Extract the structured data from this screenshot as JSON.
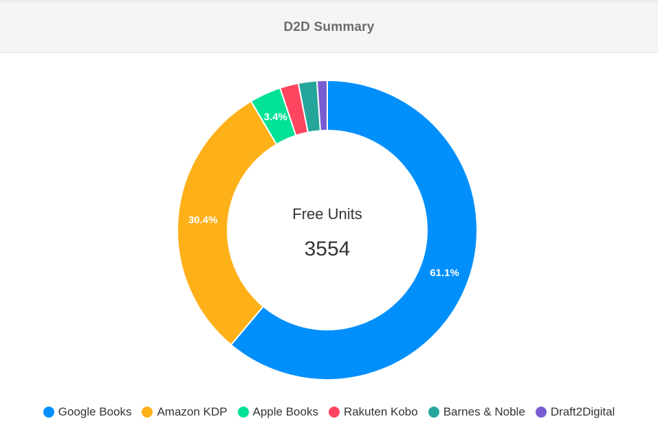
{
  "header": {
    "title": "D2D Summary"
  },
  "center": {
    "title": "Free Units",
    "value": "3554"
  },
  "chart_data": {
    "type": "pie",
    "donut": true,
    "title": "D2D Summary",
    "total": 3554,
    "categories": [
      "Google Books",
      "Amazon KDP",
      "Apple Books",
      "Rakuten Kobo",
      "Barnes & Noble",
      "Draft2Digital"
    ],
    "values": [
      61.1,
      30.4,
      3.4,
      2.0,
      2.0,
      1.1
    ],
    "value_unit": "%",
    "data_labels": [
      "61.1%",
      "30.4%",
      "3.4%",
      "",
      "",
      ""
    ],
    "colors": [
      "#008ffb",
      "#feb019",
      "#00e396",
      "#ff4560",
      "#26a69a",
      "#775dd0"
    ],
    "legend_position": "bottom"
  }
}
